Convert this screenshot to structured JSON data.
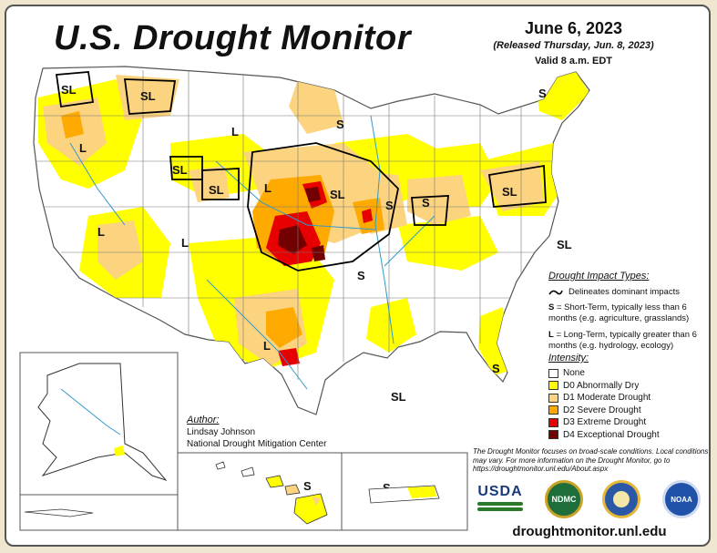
{
  "header": {
    "title": "U.S. Drought Monitor",
    "date": "June 6, 2023",
    "released": "(Released Thursday, Jun. 8, 2023)",
    "valid": "Valid 8 a.m. EDT"
  },
  "map_labels": [
    "SL",
    "SL",
    "L",
    "L",
    "SL",
    "SL",
    "L",
    "S",
    "SL",
    "S",
    "SL",
    "S",
    "S",
    "L",
    "S",
    "L",
    "SL",
    "S",
    "L",
    "SL",
    "S",
    "S"
  ],
  "drought_impact": {
    "heading": "Drought Impact Types:",
    "delineates": "Delineates dominant impacts",
    "short_term_code": "S",
    "short_term_text": "= Short-Term, typically less than 6 months (e.g. agriculture, grasslands)",
    "long_term_code": "L",
    "long_term_text": "= Long-Term, typically greater than 6 months (e.g. hydrology, ecology)"
  },
  "intensity": {
    "heading": "Intensity:",
    "levels": [
      {
        "label": "None",
        "color": "#ffffff"
      },
      {
        "label": "D0 Abnormally Dry",
        "color": "#ffff00"
      },
      {
        "label": "D1 Moderate Drought",
        "color": "#fcd37f"
      },
      {
        "label": "D2 Severe Drought",
        "color": "#ffaa00"
      },
      {
        "label": "D3 Extreme Drought",
        "color": "#e60000"
      },
      {
        "label": "D4 Exceptional Drought",
        "color": "#730000"
      }
    ]
  },
  "author": {
    "heading": "Author:",
    "name": "Lindsay Johnson",
    "org": "National Drought Mitigation Center"
  },
  "disclaimer": "The Drought Monitor focuses on broad-scale conditions. Local conditions may vary. For more information on the Drought Monitor, go to https://droughtmonitor.unl.edu/About.aspx",
  "logos": {
    "usda": "USDA",
    "ndmc": "NDMC",
    "noaa": "NOAA"
  },
  "url": "droughtmonitor.unl.edu",
  "colors": {
    "water": "#3399cc",
    "outline": "#555555",
    "impact_line": "#000000"
  }
}
